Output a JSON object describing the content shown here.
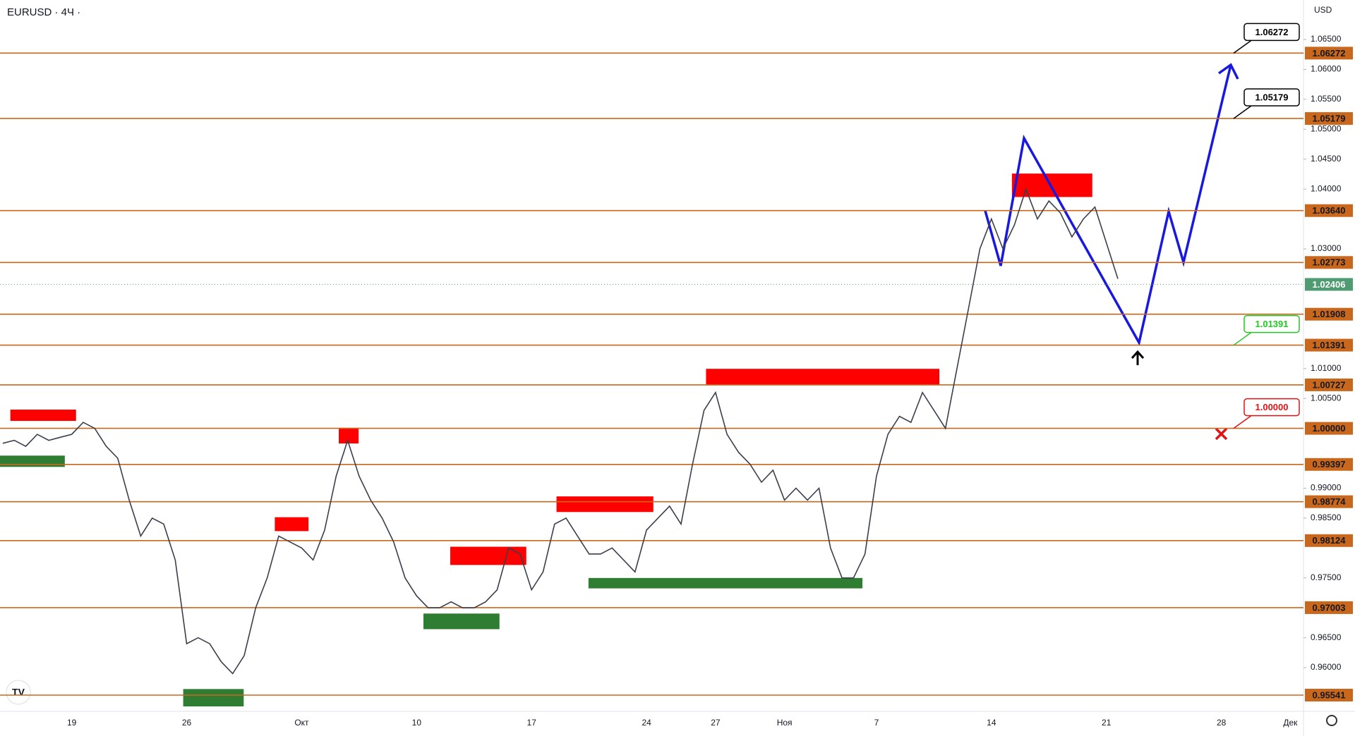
{
  "chart_data": {
    "type": "line",
    "title": "EURUSD · 4Ч ·",
    "currency": "USD",
    "color": "#3a3f4b",
    "categories": [
      null,
      null,
      null,
      null,
      null,
      null,
      "19",
      null,
      null,
      null,
      null,
      null,
      null,
      null,
      null,
      null,
      "26",
      null,
      null,
      null,
      null,
      null,
      null,
      null,
      null,
      null,
      "Окт",
      null,
      null,
      null,
      null,
      null,
      null,
      null,
      null,
      null,
      "10",
      null,
      null,
      null,
      null,
      null,
      null,
      null,
      null,
      null,
      "17",
      null,
      null,
      null,
      null,
      null,
      null,
      null,
      null,
      null,
      "24",
      null,
      null,
      null,
      null,
      null,
      "27",
      null,
      null,
      null,
      null,
      null,
      "Ноя",
      null,
      null,
      null,
      null,
      null,
      null,
      null,
      "7",
      null,
      null,
      null,
      null,
      null,
      null,
      null,
      null,
      null,
      "14",
      null,
      null,
      null,
      null,
      null,
      null,
      null,
      null,
      null,
      "21",
      null,
      null,
      null,
      null,
      null,
      null,
      null,
      null,
      null,
      "28",
      null,
      null,
      null,
      null,
      null,
      "Дек",
      null
    ],
    "values": [
      0.9975,
      0.998,
      0.997,
      0.999,
      0.998,
      0.9985,
      0.999,
      1.001,
      1.0,
      0.997,
      0.995,
      0.988,
      0.982,
      0.985,
      0.984,
      0.978,
      0.964,
      0.965,
      0.964,
      0.961,
      0.959,
      0.962,
      0.97,
      0.975,
      0.982,
      0.981,
      0.98,
      0.978,
      0.983,
      0.992,
      0.998,
      0.992,
      0.988,
      0.985,
      0.981,
      0.975,
      0.972,
      0.97,
      0.97,
      0.971,
      0.97,
      0.97,
      0.971,
      0.973,
      0.98,
      0.979,
      0.973,
      0.976,
      0.984,
      0.985,
      0.982,
      0.979,
      0.979,
      0.98,
      0.978,
      0.976,
      0.983,
      0.985,
      0.987,
      0.984,
      0.994,
      1.003,
      1.006,
      0.999,
      0.996,
      0.994,
      0.991,
      0.993,
      0.988,
      0.99,
      0.988,
      0.99,
      0.98,
      0.975,
      0.975,
      0.979,
      0.992,
      0.999,
      1.002,
      1.001,
      1.006,
      1.003,
      1.0,
      1.01,
      1.02,
      1.03,
      1.035,
      1.03,
      1.034,
      1.04,
      1.035,
      1.038,
      1.036,
      1.032,
      1.035,
      1.037,
      1.031,
      1.025,
      null,
      null,
      null,
      null,
      null,
      null,
      null,
      null,
      null,
      null,
      null,
      null,
      null,
      null,
      null,
      null
    ],
    "ylim": [
      0.9527,
      1.0716
    ],
    "yticks": [
      {
        "value": 1.065,
        "label": "1.06500"
      },
      {
        "value": 1.06,
        "label": "1.06000"
      },
      {
        "value": 1.055,
        "label": "1.05500"
      },
      {
        "value": 1.05,
        "label": "1.05000"
      },
      {
        "value": 1.045,
        "label": "1.04500"
      },
      {
        "value": 1.04,
        "label": "1.04000"
      },
      {
        "value": 1.03,
        "label": "1.03000"
      },
      {
        "value": 1.01,
        "label": "1.01000"
      },
      {
        "value": 1.005,
        "label": "1.00500"
      },
      {
        "value": 0.99,
        "label": "0.99000"
      },
      {
        "value": 0.985,
        "label": "0.98500"
      },
      {
        "value": 0.975,
        "label": "0.97500"
      },
      {
        "value": 0.965,
        "label": "0.96500"
      },
      {
        "value": 0.96,
        "label": "0.96000"
      }
    ],
    "levels": [
      {
        "value": 1.06272,
        "label": "1.06272"
      },
      {
        "value": 1.05179,
        "label": "1.05179"
      },
      {
        "value": 1.0364,
        "label": "1.03640"
      },
      {
        "value": 1.02773,
        "label": "1.02773"
      },
      {
        "value": 1.01908,
        "label": "1.01908"
      },
      {
        "value": 1.01391,
        "label": "1.01391"
      },
      {
        "value": 1.00727,
        "label": "1.00727"
      },
      {
        "value": 1.0,
        "label": "1.00000"
      },
      {
        "value": 0.99397,
        "label": "0.99397"
      },
      {
        "value": 0.98774,
        "label": "0.98774"
      },
      {
        "value": 0.98124,
        "label": "0.98124"
      },
      {
        "value": 0.97003,
        "label": "0.97003"
      },
      {
        "value": 0.95541,
        "label": "0.95541"
      }
    ],
    "level_color": "#c9681c",
    "last_price": {
      "value": 1.02406,
      "label": "1.02406",
      "color": "#4f9b72"
    },
    "callouts": [
      {
        "value": 1.06272,
        "label": "1.06272",
        "color": "#000000"
      },
      {
        "value": 1.05179,
        "label": "1.05179",
        "color": "#000000"
      },
      {
        "value": 1.01391,
        "label": "1.01391",
        "color": "#22c722"
      },
      {
        "value": 1.0,
        "label": "1.00000",
        "color": "#e01414"
      }
    ]
  }
}
